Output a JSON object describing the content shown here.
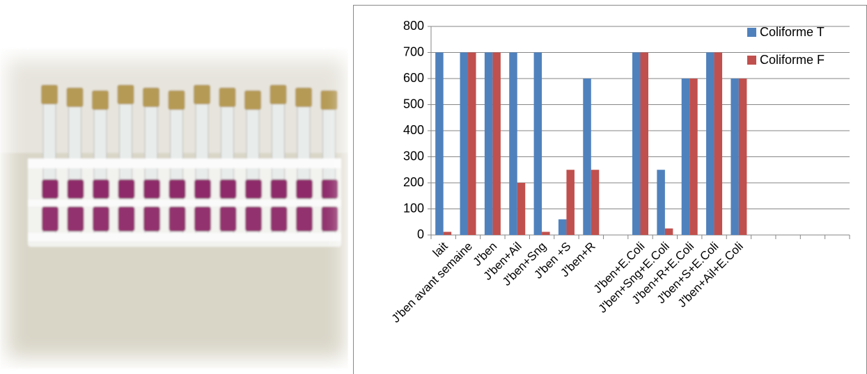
{
  "chart_data": {
    "type": "bar",
    "categories": [
      "lait",
      "J'ben avant semaine",
      "J'ben",
      "J'ben+Ail",
      "J'ben+Sng",
      "J'ben +S",
      "J'ben+R",
      null,
      "J'ben+E.Coli",
      "J'ben+Sng+E.Coli",
      "J'ben+R+E.Coli",
      "J'ben+S+E.Coli",
      "J'ben+Ail+E.Coli",
      null,
      null,
      null,
      null
    ],
    "series": [
      {
        "name": "Coliforme T",
        "color": "#4f81bd",
        "values": [
          700,
          700,
          700,
          700,
          700,
          60,
          600,
          null,
          700,
          250,
          600,
          700,
          600,
          null,
          null,
          null,
          null
        ]
      },
      {
        "name": "Coliforme F",
        "color": "#c0504d",
        "values": [
          12,
          700,
          700,
          200,
          12,
          250,
          250,
          null,
          700,
          25,
          600,
          700,
          600,
          null,
          null,
          null,
          null
        ]
      }
    ],
    "ylim": [
      0,
      800
    ],
    "yticks": [
      0,
      100,
      200,
      300,
      400,
      500,
      600,
      700,
      800
    ],
    "grid": true,
    "legend": "top-right"
  }
}
